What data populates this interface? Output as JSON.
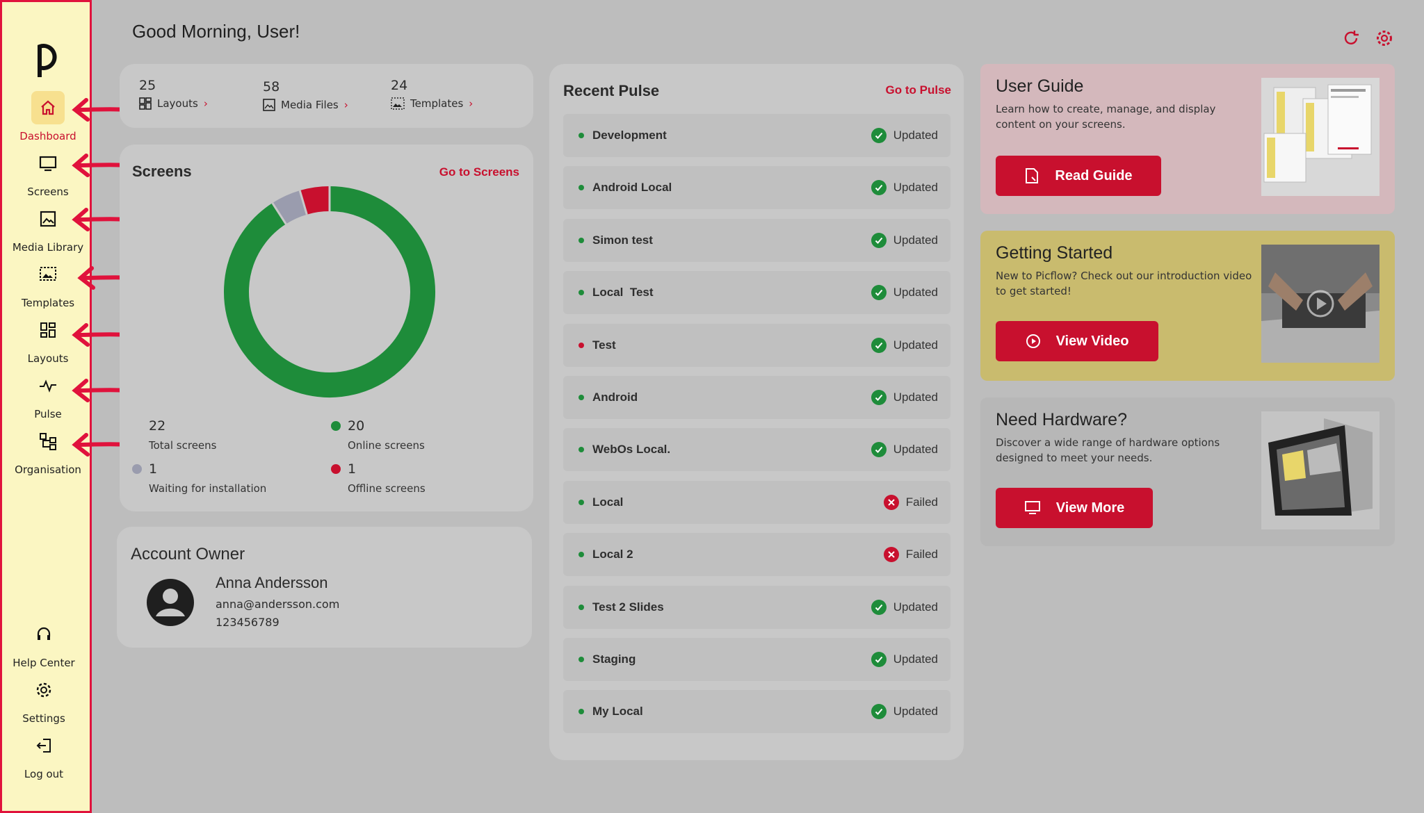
{
  "sidebar": {
    "items": [
      {
        "label": "Dashboard",
        "icon": "home-icon"
      },
      {
        "label": "Screens",
        "icon": "monitor-icon"
      },
      {
        "label": "Media Library",
        "icon": "image-icon"
      },
      {
        "label": "Templates",
        "icon": "template-icon"
      },
      {
        "label": "Layouts",
        "icon": "layout-grid-icon"
      },
      {
        "label": "Pulse",
        "icon": "pulse-icon"
      },
      {
        "label": "Organisation",
        "icon": "org-chart-icon"
      }
    ],
    "bottom": [
      {
        "label": "Help Center",
        "icon": "headset-icon"
      },
      {
        "label": "Settings",
        "icon": "gear-icon"
      },
      {
        "label": "Log out",
        "icon": "logout-icon"
      }
    ]
  },
  "header": {
    "greeting": "Good Morning, User!"
  },
  "stats": [
    {
      "count": "25",
      "label": "Layouts"
    },
    {
      "count": "58",
      "label": "Media Files"
    },
    {
      "count": "24",
      "label": "Templates"
    }
  ],
  "screens": {
    "title": "Screens",
    "link": "Go to Screens",
    "total": {
      "count": "22",
      "label": "Total screens"
    },
    "online": {
      "count": "20",
      "label": "Online screens"
    },
    "waiting": {
      "count": "1",
      "label": "Waiting for installation"
    },
    "offline": {
      "count": "1",
      "label": "Offline screens"
    }
  },
  "chart_data": {
    "type": "pie",
    "categories": [
      "Online screens",
      "Waiting for installation",
      "Offline screens"
    ],
    "values": [
      20,
      1,
      1
    ],
    "colors": [
      "#1e8c3a",
      "#9a9cae",
      "#c8102e"
    ]
  },
  "account": {
    "title": "Account Owner",
    "name": "Anna Andersson",
    "email": "anna@andersson.com",
    "phone": "123456789"
  },
  "pulse": {
    "title": "Recent Pulse",
    "link": "Go to Pulse",
    "rows": [
      {
        "name": "Development",
        "status": "Updated",
        "dot": "green"
      },
      {
        "name": "Android Local",
        "status": "Updated",
        "dot": "green"
      },
      {
        "name": "Simon test",
        "status": "Updated",
        "dot": "green"
      },
      {
        "name": "Local  Test",
        "status": "Updated",
        "dot": "green"
      },
      {
        "name": "Test",
        "status": "Updated",
        "dot": "red"
      },
      {
        "name": "Android",
        "status": "Updated",
        "dot": "green"
      },
      {
        "name": "WebOs Local.",
        "status": "Updated",
        "dot": "green"
      },
      {
        "name": "Local",
        "status": "Failed",
        "dot": "green"
      },
      {
        "name": "Local 2",
        "status": "Failed",
        "dot": "green"
      },
      {
        "name": "Test 2 Slides",
        "status": "Updated",
        "dot": "green"
      },
      {
        "name": "Staging",
        "status": "Updated",
        "dot": "green"
      },
      {
        "name": "My Local",
        "status": "Updated",
        "dot": "green"
      }
    ]
  },
  "guide": {
    "title": "User Guide",
    "desc": "Learn how to create, manage, and display content on your screens.",
    "button": "Read Guide"
  },
  "started": {
    "title": "Getting Started",
    "desc": "New to Picflow? Check out our introduction video to get started!",
    "button": "View Video"
  },
  "hardware": {
    "title": "Need Hardware?",
    "desc": "Discover a wide range of hardware options designed to meet your needs.",
    "button": "View More"
  },
  "colors": {
    "accent": "#c8102e",
    "online": "#1e8c3a",
    "waiting": "#9a9cae",
    "sidebar": "#fbf6c2"
  }
}
